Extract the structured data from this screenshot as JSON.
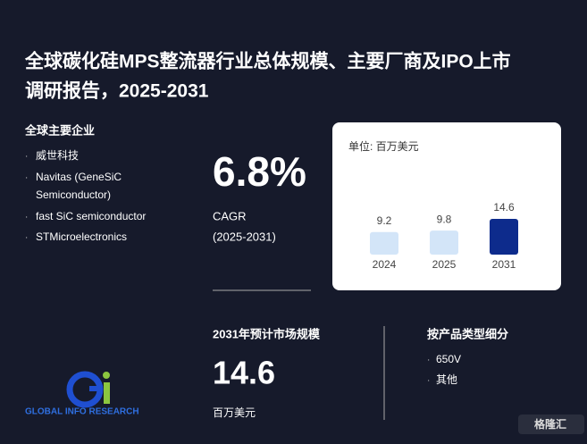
{
  "header": {
    "title_line1": "全球碳化硅MPS整流器行业总体规模、主要厂商及IPO上市",
    "title_line2": "调研报告，2025-2031"
  },
  "companies": {
    "title": "全球主要企业",
    "items": [
      "威世科技",
      "Navitas (GeneSiC",
      "Semiconductor)",
      "fast SiC semiconductor",
      "STMicroelectronics"
    ]
  },
  "cagr": {
    "value": "6.8%",
    "label": "CAGR",
    "period": "(2025-2031)"
  },
  "chart": {
    "unit": "单位: 百万美元",
    "categories": [
      "2024",
      "2025",
      "2031"
    ],
    "values": [
      9.2,
      9.8,
      14.6
    ],
    "colors": [
      "#d3e5f8",
      "#d3e5f8",
      "#0d2b8c"
    ]
  },
  "market": {
    "title": "2031年预计市场规模",
    "value": "14.6",
    "unit": "百万美元"
  },
  "segments": {
    "title": "按产品类型细分",
    "items": [
      "650V",
      "其他"
    ]
  },
  "logo": {
    "text": "GLOBAL INFO RESEARCH"
  },
  "badge": {
    "text": "格隆汇"
  }
}
